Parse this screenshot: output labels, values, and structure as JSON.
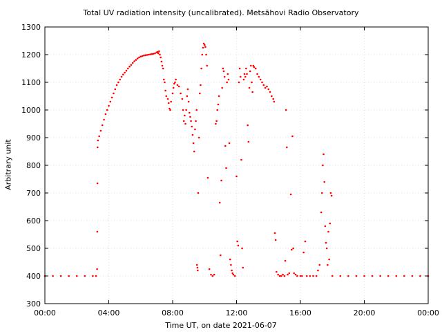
{
  "chart_data": {
    "type": "scatter",
    "title": "Total UV radiation intensity (uncalibrated). Metsähovi Radio Observatory",
    "xlabel": "Time UT, on date 2021-06-07",
    "ylabel": "Arbitrary unit",
    "xlim": [
      0,
      24
    ],
    "ylim": [
      300,
      1300
    ],
    "x_ticks": [
      {
        "value": 0,
        "label": "00:00"
      },
      {
        "value": 4,
        "label": "04:00"
      },
      {
        "value": 8,
        "label": "08:00"
      },
      {
        "value": 12,
        "label": "12:00"
      },
      {
        "value": 16,
        "label": "16:00"
      },
      {
        "value": 20,
        "label": "20:00"
      },
      {
        "value": 24,
        "label": "00:00"
      }
    ],
    "y_ticks": [
      300,
      400,
      500,
      600,
      700,
      800,
      900,
      1000,
      1100,
      1200,
      1300
    ],
    "grid": true,
    "legend": "none",
    "series_color": "#ff0000",
    "series": [
      {
        "points": [
          [
            0.0,
            400
          ],
          [
            0.5,
            400
          ],
          [
            1.0,
            400
          ],
          [
            1.5,
            400
          ],
          [
            2.0,
            400
          ],
          [
            2.5,
            400
          ],
          [
            3.0,
            400
          ],
          [
            3.2,
            400
          ],
          [
            3.27,
            425
          ],
          [
            3.28,
            560
          ],
          [
            3.29,
            735
          ],
          [
            3.3,
            865
          ],
          [
            3.32,
            890
          ],
          [
            3.4,
            905
          ],
          [
            3.5,
            925
          ],
          [
            3.6,
            945
          ],
          [
            3.7,
            965
          ],
          [
            3.8,
            985
          ],
          [
            3.9,
            1000
          ],
          [
            4.0,
            1015
          ],
          [
            4.1,
            1030
          ],
          [
            4.2,
            1045
          ],
          [
            4.3,
            1060
          ],
          [
            4.4,
            1075
          ],
          [
            4.5,
            1090
          ],
          [
            4.6,
            1100
          ],
          [
            4.7,
            1110
          ],
          [
            4.8,
            1120
          ],
          [
            4.9,
            1128
          ],
          [
            5.0,
            1135
          ],
          [
            5.1,
            1142
          ],
          [
            5.2,
            1150
          ],
          [
            5.3,
            1157
          ],
          [
            5.4,
            1163
          ],
          [
            5.5,
            1170
          ],
          [
            5.6,
            1176
          ],
          [
            5.7,
            1181
          ],
          [
            5.8,
            1186
          ],
          [
            5.9,
            1190
          ],
          [
            6.0,
            1193
          ],
          [
            6.1,
            1195
          ],
          [
            6.2,
            1197
          ],
          [
            6.3,
            1198
          ],
          [
            6.4,
            1199
          ],
          [
            6.5,
            1200
          ],
          [
            6.6,
            1201
          ],
          [
            6.7,
            1202
          ],
          [
            6.8,
            1203
          ],
          [
            6.9,
            1205
          ],
          [
            7.0,
            1208
          ],
          [
            7.05,
            1210
          ],
          [
            7.1,
            1205
          ],
          [
            7.15,
            1212
          ],
          [
            7.2,
            1200
          ],
          [
            7.25,
            1190
          ],
          [
            7.3,
            1175
          ],
          [
            7.35,
            1160
          ],
          [
            7.4,
            1150
          ],
          [
            7.45,
            1110
          ],
          [
            7.5,
            1100
          ],
          [
            7.55,
            1070
          ],
          [
            7.6,
            1050
          ],
          [
            7.7,
            1040
          ],
          [
            7.75,
            1025
          ],
          [
            7.8,
            1005
          ],
          [
            7.85,
            1000
          ],
          [
            7.9,
            1030
          ],
          [
            8.0,
            1060
          ],
          [
            8.05,
            1080
          ],
          [
            8.1,
            1095
          ],
          [
            8.15,
            1100
          ],
          [
            8.2,
            1110
          ],
          [
            8.3,
            1090
          ],
          [
            8.4,
            1085
          ],
          [
            8.5,
            1060
          ],
          [
            8.6,
            1040
          ],
          [
            8.65,
            1000
          ],
          [
            8.7,
            960
          ],
          [
            8.75,
            980
          ],
          [
            8.8,
            950
          ],
          [
            8.85,
            1000
          ],
          [
            8.9,
            1050
          ],
          [
            8.95,
            1075
          ],
          [
            9.0,
            1030
          ],
          [
            9.05,
            990
          ],
          [
            9.1,
            975
          ],
          [
            9.15,
            960
          ],
          [
            9.2,
            940
          ],
          [
            9.25,
            910
          ],
          [
            9.3,
            880
          ],
          [
            9.35,
            850
          ],
          [
            9.4,
            930
          ],
          [
            9.45,
            960
          ],
          [
            9.5,
            1000
          ],
          [
            9.52,
            440
          ],
          [
            9.55,
            430
          ],
          [
            9.57,
            420
          ],
          [
            9.6,
            700
          ],
          [
            9.65,
            900
          ],
          [
            9.7,
            1060
          ],
          [
            9.75,
            1090
          ],
          [
            9.8,
            1150
          ],
          [
            9.85,
            1200
          ],
          [
            9.9,
            1225
          ],
          [
            9.95,
            1240
          ],
          [
            10.0,
            1235
          ],
          [
            10.05,
            1228
          ],
          [
            10.1,
            1200
          ],
          [
            10.15,
            1160
          ],
          [
            10.2,
            755
          ],
          [
            10.3,
            425
          ],
          [
            10.4,
            405
          ],
          [
            10.5,
            400
          ],
          [
            10.6,
            405
          ],
          [
            10.7,
            950
          ],
          [
            10.75,
            960
          ],
          [
            10.8,
            1000
          ],
          [
            10.85,
            1020
          ],
          [
            10.9,
            1050
          ],
          [
            10.95,
            665
          ],
          [
            11.0,
            475
          ],
          [
            11.05,
            745
          ],
          [
            11.1,
            1080
          ],
          [
            11.15,
            1150
          ],
          [
            11.2,
            1140
          ],
          [
            11.25,
            1120
          ],
          [
            11.3,
            870
          ],
          [
            11.35,
            790
          ],
          [
            11.4,
            1100
          ],
          [
            11.45,
            1130
          ],
          [
            11.5,
            1110
          ],
          [
            11.55,
            880
          ],
          [
            11.6,
            460
          ],
          [
            11.65,
            440
          ],
          [
            11.7,
            420
          ],
          [
            11.75,
            410
          ],
          [
            11.8,
            405
          ],
          [
            11.9,
            400
          ],
          [
            12.0,
            760
          ],
          [
            12.05,
            525
          ],
          [
            12.1,
            510
          ],
          [
            12.15,
            1100
          ],
          [
            12.2,
            1150
          ],
          [
            12.25,
            1120
          ],
          [
            12.3,
            820
          ],
          [
            12.35,
            500
          ],
          [
            12.4,
            430
          ],
          [
            12.45,
            1110
          ],
          [
            12.5,
            1130
          ],
          [
            12.55,
            1120
          ],
          [
            12.6,
            1150
          ],
          [
            12.65,
            1130
          ],
          [
            12.7,
            945
          ],
          [
            12.75,
            885
          ],
          [
            12.8,
            1080
          ],
          [
            12.85,
            1140
          ],
          [
            12.9,
            1160
          ],
          [
            12.95,
            1100
          ],
          [
            13.0,
            1065
          ],
          [
            13.05,
            1160
          ],
          [
            13.1,
            1155
          ],
          [
            13.2,
            1150
          ],
          [
            13.3,
            1130
          ],
          [
            13.4,
            1120
          ],
          [
            13.5,
            1110
          ],
          [
            13.6,
            1100
          ],
          [
            13.7,
            1090
          ],
          [
            13.8,
            1080
          ],
          [
            13.9,
            1085
          ],
          [
            14.0,
            1075
          ],
          [
            14.1,
            1065
          ],
          [
            14.2,
            1050
          ],
          [
            14.3,
            1040
          ],
          [
            14.35,
            1030
          ],
          [
            14.4,
            555
          ],
          [
            14.45,
            530
          ],
          [
            14.5,
            415
          ],
          [
            14.6,
            405
          ],
          [
            14.7,
            400
          ],
          [
            14.8,
            400
          ],
          [
            14.9,
            405
          ],
          [
            15.0,
            400
          ],
          [
            15.05,
            455
          ],
          [
            15.1,
            1000
          ],
          [
            15.15,
            865
          ],
          [
            15.2,
            405
          ],
          [
            15.3,
            410
          ],
          [
            15.4,
            695
          ],
          [
            15.45,
            495
          ],
          [
            15.5,
            905
          ],
          [
            15.55,
            500
          ],
          [
            15.6,
            410
          ],
          [
            15.7,
            405
          ],
          [
            15.8,
            400
          ],
          [
            16.0,
            400
          ],
          [
            16.1,
            400
          ],
          [
            16.2,
            485
          ],
          [
            16.3,
            525
          ],
          [
            16.4,
            400
          ],
          [
            16.6,
            400
          ],
          [
            16.8,
            400
          ],
          [
            17.0,
            400
          ],
          [
            17.1,
            420
          ],
          [
            17.2,
            440
          ],
          [
            17.3,
            630
          ],
          [
            17.35,
            700
          ],
          [
            17.4,
            800
          ],
          [
            17.45,
            840
          ],
          [
            17.5,
            740
          ],
          [
            17.55,
            580
          ],
          [
            17.6,
            520
          ],
          [
            17.65,
            500
          ],
          [
            17.7,
            440
          ],
          [
            17.75,
            560
          ],
          [
            17.8,
            460
          ],
          [
            17.85,
            590
          ],
          [
            17.9,
            700
          ],
          [
            17.95,
            690
          ],
          [
            18.0,
            400
          ],
          [
            18.5,
            400
          ],
          [
            19.0,
            400
          ],
          [
            19.5,
            400
          ],
          [
            20.0,
            400
          ],
          [
            20.5,
            400
          ],
          [
            21.0,
            400
          ],
          [
            21.5,
            400
          ],
          [
            22.0,
            400
          ],
          [
            22.5,
            400
          ],
          [
            23.0,
            400
          ],
          [
            23.5,
            400
          ],
          [
            24.0,
            400
          ]
        ]
      }
    ]
  }
}
